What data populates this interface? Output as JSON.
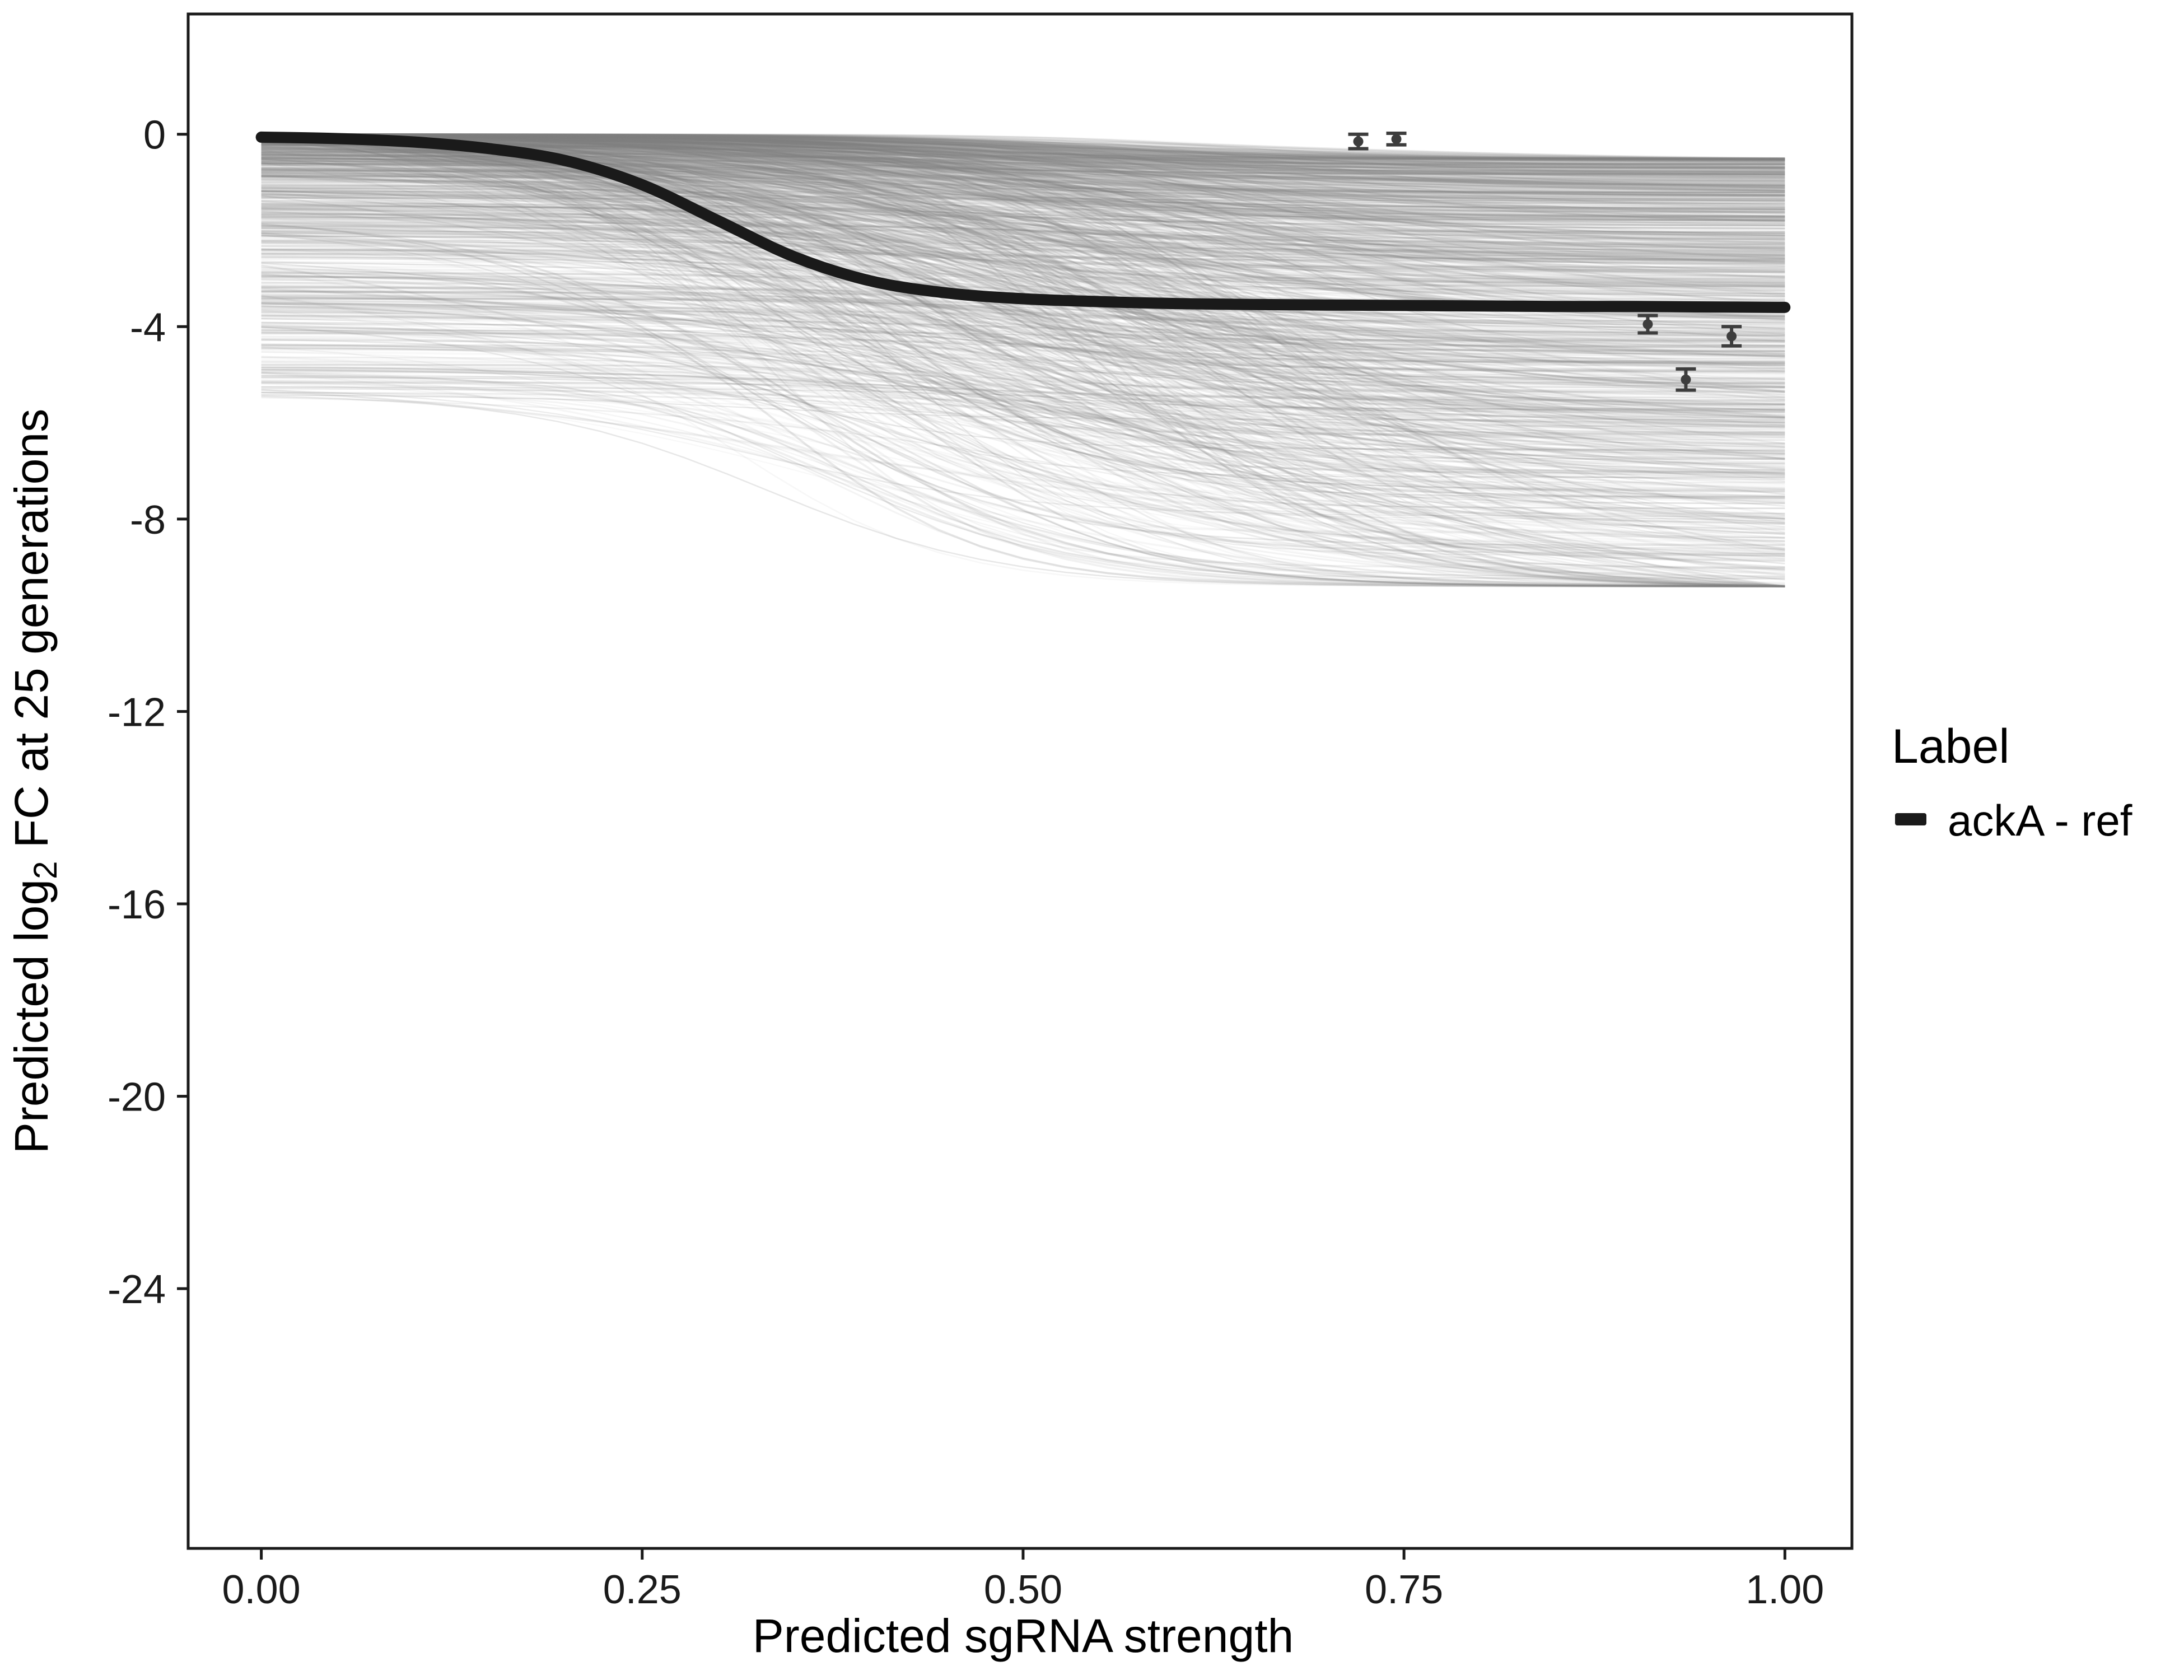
{
  "chart_data": {
    "type": "line",
    "title": "",
    "xlabel": "Predicted sgRNA strength",
    "ylabel": "Predicted  log2 FC at 25 generations",
    "ylabel_parts": {
      "pre": "Predicted  log",
      "sub": "2",
      "post": " FC at 25 generations"
    },
    "xlim": [
      -0.048,
      1.044
    ],
    "ylim": [
      -29.4,
      2.5
    ],
    "x_ticks": [
      0,
      0.25,
      0.5,
      0.75,
      1
    ],
    "x_tick_labels": [
      "0.00",
      "0.25",
      "0.50",
      "0.75",
      "1.00"
    ],
    "y_ticks": [
      0,
      -4,
      -8,
      -12,
      -16,
      -20,
      -24
    ],
    "y_tick_labels": [
      "0",
      "-4",
      "-8",
      "-12",
      "-16",
      "-20",
      "-24"
    ],
    "grid": false,
    "panel_border_color": "#1a1a1a",
    "legend": {
      "position": "right",
      "title": "Label",
      "items": [
        {
          "label": "ackA - ref",
          "color": "#1a1a1a"
        }
      ]
    },
    "series": [
      {
        "name": "ackA - ref",
        "color": "#1a1a1a",
        "stroke_width": 20,
        "x": [
          0,
          0.05,
          0.1,
          0.15,
          0.2,
          0.25,
          0.3,
          0.35,
          0.4,
          0.45,
          0.5,
          0.55,
          0.6,
          0.65,
          0.7,
          0.75,
          0.8,
          0.85,
          0.9,
          0.95,
          1.0
        ],
        "y": [
          -0.06,
          -0.09,
          -0.16,
          -0.3,
          -0.55,
          -1.05,
          -1.8,
          -2.55,
          -3.05,
          -3.3,
          -3.42,
          -3.48,
          -3.52,
          -3.54,
          -3.55,
          -3.56,
          -3.57,
          -3.58,
          -3.58,
          -3.59,
          -3.6
        ]
      }
    ],
    "points": [
      {
        "x": 0.72,
        "y": -0.15,
        "err": 0.15
      },
      {
        "x": 0.745,
        "y": -0.1,
        "err": 0.12
      },
      {
        "x": 0.91,
        "y": -3.95,
        "err": 0.18
      },
      {
        "x": 0.935,
        "y": -5.1,
        "err": 0.22
      },
      {
        "x": 0.965,
        "y": -4.2,
        "err": 0.2
      }
    ],
    "point_color": "#3d3d3d",
    "background_ensemble": {
      "description": "many light-gray bootstrap prediction curves forming a band from 0 down to about -9",
      "count": 1200,
      "color": "#808080",
      "seed": 42,
      "start_y_range": [
        0,
        -5.5
      ],
      "end_y_min": -9.4,
      "midpoint_x_range": [
        0.3,
        0.68
      ],
      "steepness_range": [
        5,
        16
      ]
    }
  }
}
